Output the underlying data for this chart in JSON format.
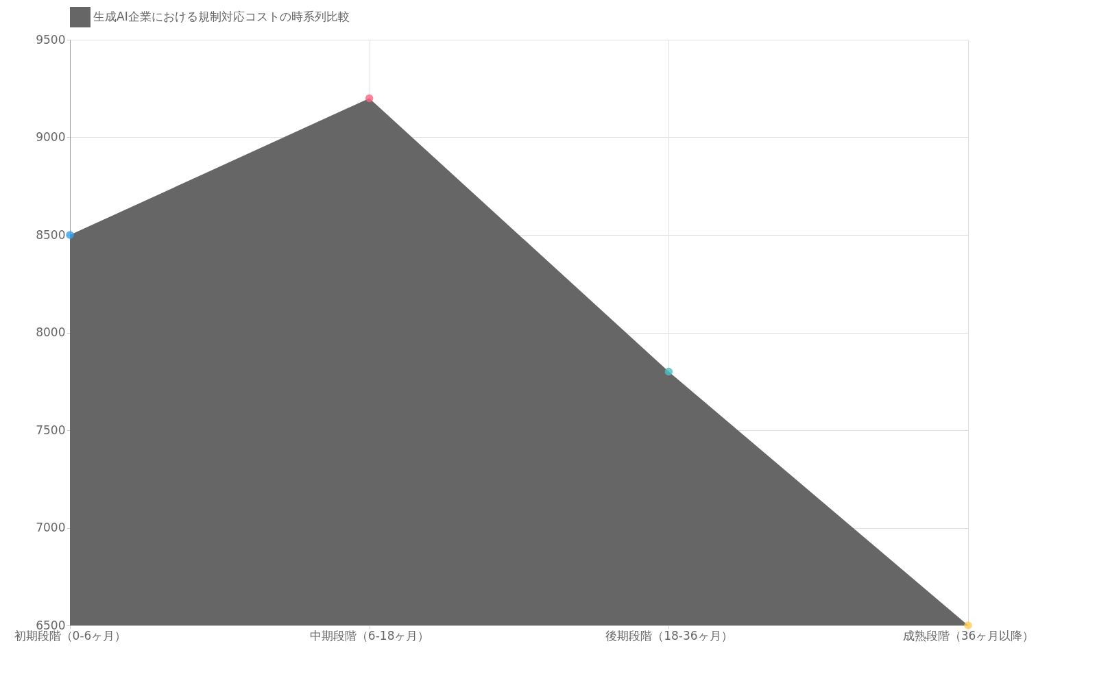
{
  "chart_data": {
    "type": "area",
    "categories": [
      "初期段階（0-6ヶ月）",
      "中期段階（6-18ヶ月）",
      "後期段階（18-36ヶ月）",
      "成熟段階（36ヶ月以降）"
    ],
    "series": [
      {
        "name": "生成AI企業における規制対応コストの時系列比較",
        "color": "#666666",
        "colors": [
          "#36a2eb",
          "#ff6384",
          "#4bc0c0",
          "#ffcd56"
        ],
        "values": [
          8500,
          9200,
          7800,
          6500
        ]
      }
    ],
    "ylim": [
      6500,
      9500
    ],
    "yticks": [
      6500,
      7000,
      7500,
      8000,
      8500,
      9000,
      9500
    ],
    "grid": true,
    "legend": "top",
    "marker": "circle"
  }
}
